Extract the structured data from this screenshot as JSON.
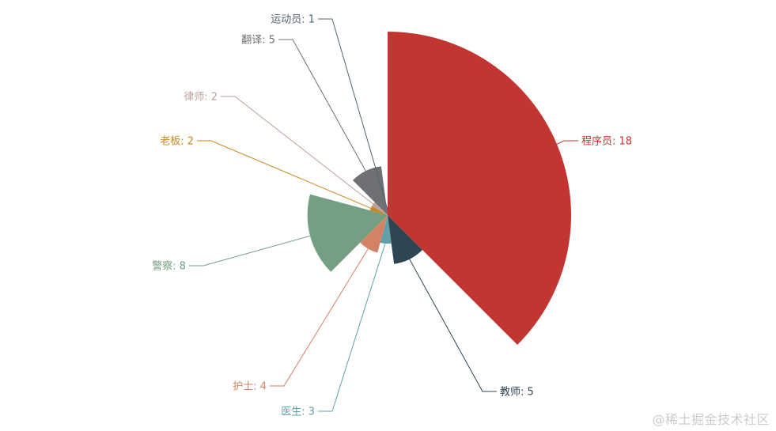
{
  "chart_data": {
    "type": "pie",
    "rose_type": "radius",
    "label_format": "{name}: {value}",
    "slices": [
      {
        "name": "程序员",
        "value": 18,
        "color": "#c23531"
      },
      {
        "name": "教师",
        "value": 5,
        "color": "#2f4554"
      },
      {
        "name": "医生",
        "value": 3,
        "color": "#61a0a8"
      },
      {
        "name": "护士",
        "value": 4,
        "color": "#d48265"
      },
      {
        "name": "警察",
        "value": 8,
        "color": "#749f83"
      },
      {
        "name": "老板",
        "value": 2,
        "color": "#ca8622"
      },
      {
        "name": "律师",
        "value": 2,
        "color": "#bda29a"
      },
      {
        "name": "翻译",
        "value": 5,
        "color": "#6e7074"
      },
      {
        "name": "运动员",
        "value": 1,
        "color": "#546570"
      }
    ]
  },
  "watermark": "@稀土掘金技术社区"
}
